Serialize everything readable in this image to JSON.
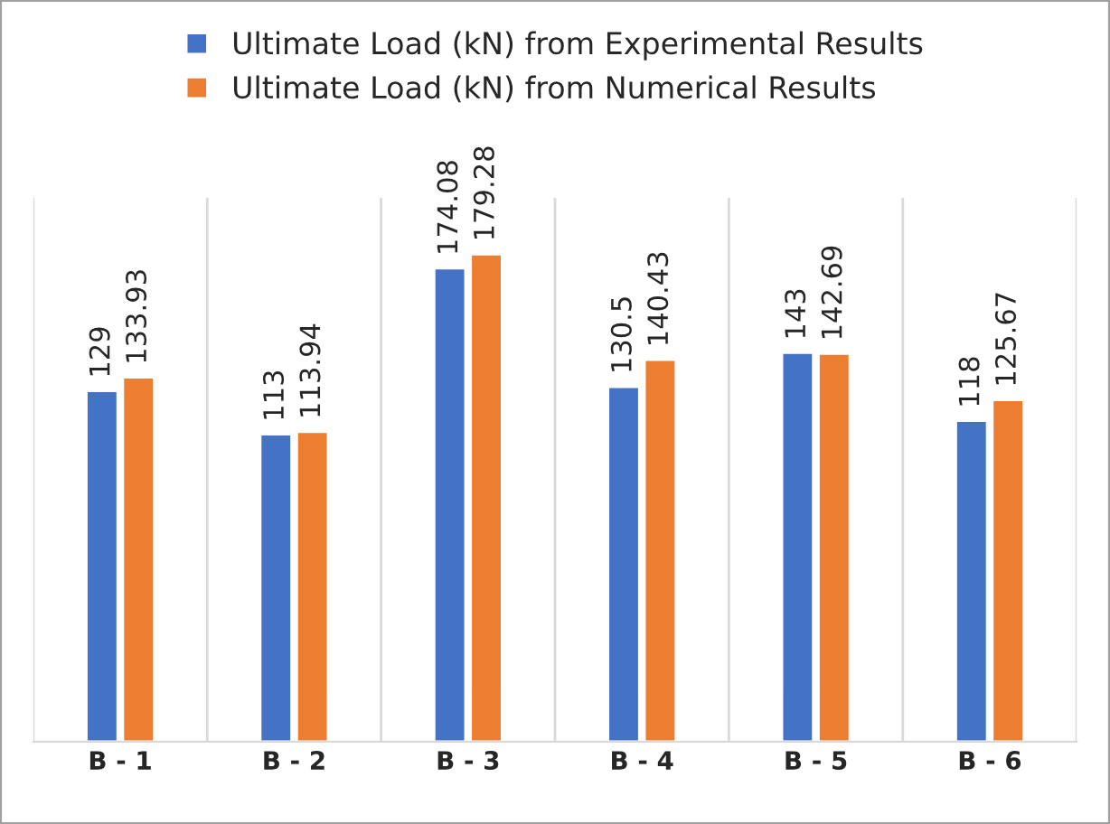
{
  "chart_data": {
    "type": "bar",
    "categories": [
      "B - 1",
      "B - 2",
      "B - 3",
      "B - 4",
      "B - 5",
      "B - 6"
    ],
    "series": [
      {
        "name": "Ultimate Load (kN) from Experimental Results",
        "color": "#4472c4",
        "values": [
          129,
          113,
          174.08,
          130.5,
          143,
          118
        ]
      },
      {
        "name": "Ultimate Load (kN) from Numerical Results",
        "color": "#ed7d31",
        "values": [
          133.93,
          113.94,
          179.28,
          140.43,
          142.69,
          125.67
        ]
      }
    ],
    "data_labels": true,
    "ylim": [
      0,
      200
    ],
    "grid": "x",
    "legend": "top",
    "tick_labels": "x"
  }
}
